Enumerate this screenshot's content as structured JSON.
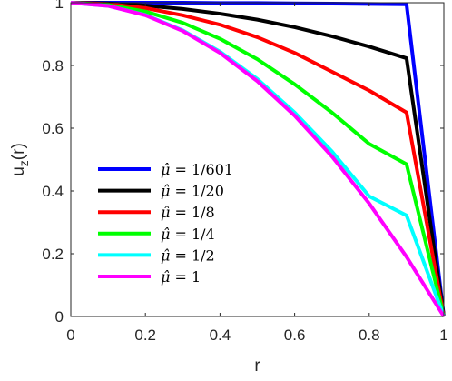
{
  "chart_data": {
    "type": "line",
    "title": "",
    "xlabel": "r",
    "ylabel": "u_z(r)",
    "ylabel_main": "u",
    "ylabel_sub": "z",
    "ylabel_tail": "(r)",
    "xlim": [
      0,
      1
    ],
    "ylim": [
      0,
      1.0
    ],
    "x_ticks": [
      0,
      0.2,
      0.4,
      0.6,
      0.8,
      1
    ],
    "x_tick_labels": [
      "0",
      "0.2",
      "0.4",
      "0.6",
      "0.8",
      "1"
    ],
    "y_ticks": [
      0,
      0.2,
      0.4,
      0.6,
      0.8,
      1
    ],
    "y_tick_labels": [
      "0",
      "0.2",
      "0.4",
      "0.6",
      "0.8",
      "1"
    ],
    "grid": false,
    "legend_position": "left",
    "series": [
      {
        "name": "μ̂ = 1/601",
        "color": "#0000ff",
        "x": [
          0,
          0.1,
          0.2,
          0.3,
          0.4,
          0.5,
          0.6,
          0.7,
          0.8,
          0.9,
          1
        ],
        "y": [
          1,
          1,
          1,
          1,
          0.999,
          0.999,
          0.998,
          0.997,
          0.996,
          0.995,
          0
        ]
      },
      {
        "name": "μ̂ = 1/20",
        "color": "#000000",
        "x": [
          0,
          0.1,
          0.2,
          0.3,
          0.4,
          0.5,
          0.6,
          0.7,
          0.8,
          0.9,
          1
        ],
        "y": [
          1,
          0.998,
          0.991,
          0.98,
          0.965,
          0.946,
          0.922,
          0.893,
          0.86,
          0.823,
          0
        ]
      },
      {
        "name": "μ̂ = 1/8",
        "color": "#ff0000",
        "x": [
          0,
          0.1,
          0.2,
          0.3,
          0.4,
          0.5,
          0.6,
          0.7,
          0.8,
          0.9,
          1
        ],
        "y": [
          1,
          0.996,
          0.983,
          0.96,
          0.93,
          0.89,
          0.84,
          0.78,
          0.72,
          0.65,
          0
        ]
      },
      {
        "name": "μ̂ = 1/4",
        "color": "#00ff00",
        "x": [
          0,
          0.1,
          0.2,
          0.3,
          0.4,
          0.5,
          0.6,
          0.7,
          0.8,
          0.9,
          1
        ],
        "y": [
          1,
          0.993,
          0.972,
          0.936,
          0.885,
          0.82,
          0.74,
          0.65,
          0.55,
          0.485,
          0
        ]
      },
      {
        "name": "μ̂ = 1/2",
        "color": "#00ffff",
        "x": [
          0,
          0.1,
          0.2,
          0.3,
          0.4,
          0.5,
          0.6,
          0.7,
          0.8,
          0.9,
          1
        ],
        "y": [
          1,
          0.99,
          0.961,
          0.912,
          0.844,
          0.757,
          0.65,
          0.526,
          0.383,
          0.322,
          0
        ]
      },
      {
        "name": "μ̂ = 1",
        "color": "#ff00ff",
        "x": [
          0,
          0.1,
          0.2,
          0.3,
          0.4,
          0.5,
          0.6,
          0.7,
          0.8,
          0.9,
          1
        ],
        "y": [
          1,
          0.99,
          0.96,
          0.91,
          0.84,
          0.75,
          0.64,
          0.51,
          0.36,
          0.19,
          0
        ]
      }
    ],
    "legend": [
      {
        "mu": "μ̂",
        "eq": " = 1/601"
      },
      {
        "mu": "μ̂",
        "eq": " = 1/20"
      },
      {
        "mu": "μ̂",
        "eq": " = 1/8"
      },
      {
        "mu": "μ̂",
        "eq": " = 1/4"
      },
      {
        "mu": "μ̂",
        "eq": " = 1/2"
      },
      {
        "mu": "μ̂",
        "eq": " = 1"
      }
    ]
  }
}
